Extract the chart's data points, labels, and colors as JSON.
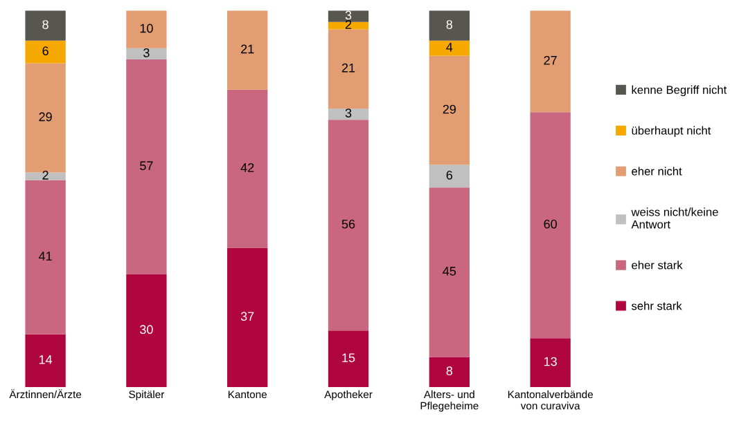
{
  "chart_data": {
    "type": "bar",
    "stacked": true,
    "data_labels": true,
    "legend": "right",
    "categories": [
      "Ärztinnen/Ärzte",
      "Spitäler",
      "Kantone",
      "Apotheker",
      "Alters- und\nPflegeheime",
      "Kantonalverbände\nvon curaviva"
    ],
    "series": [
      {
        "name": "sehr stark",
        "color": "#b0063f",
        "values": [
          14,
          30,
          37,
          15,
          8,
          13
        ]
      },
      {
        "name": "eher stark",
        "color": "#c96780",
        "values": [
          41,
          57,
          42,
          56,
          45,
          60
        ]
      },
      {
        "name": "weiss nicht/keine\nAntwort",
        "color": "#c0c0c0",
        "values": [
          2,
          3,
          null,
          3,
          6,
          null
        ]
      },
      {
        "name": "eher nicht",
        "color": "#e39d72",
        "values": [
          29,
          10,
          21,
          21,
          29,
          27
        ]
      },
      {
        "name": "überhaupt nicht",
        "color": "#f5a800",
        "values": [
          6,
          null,
          null,
          2,
          4,
          null
        ]
      },
      {
        "name": "kenne Begriff nicht",
        "color": "#575750",
        "values": [
          8,
          null,
          null,
          3,
          8,
          null
        ]
      }
    ]
  }
}
